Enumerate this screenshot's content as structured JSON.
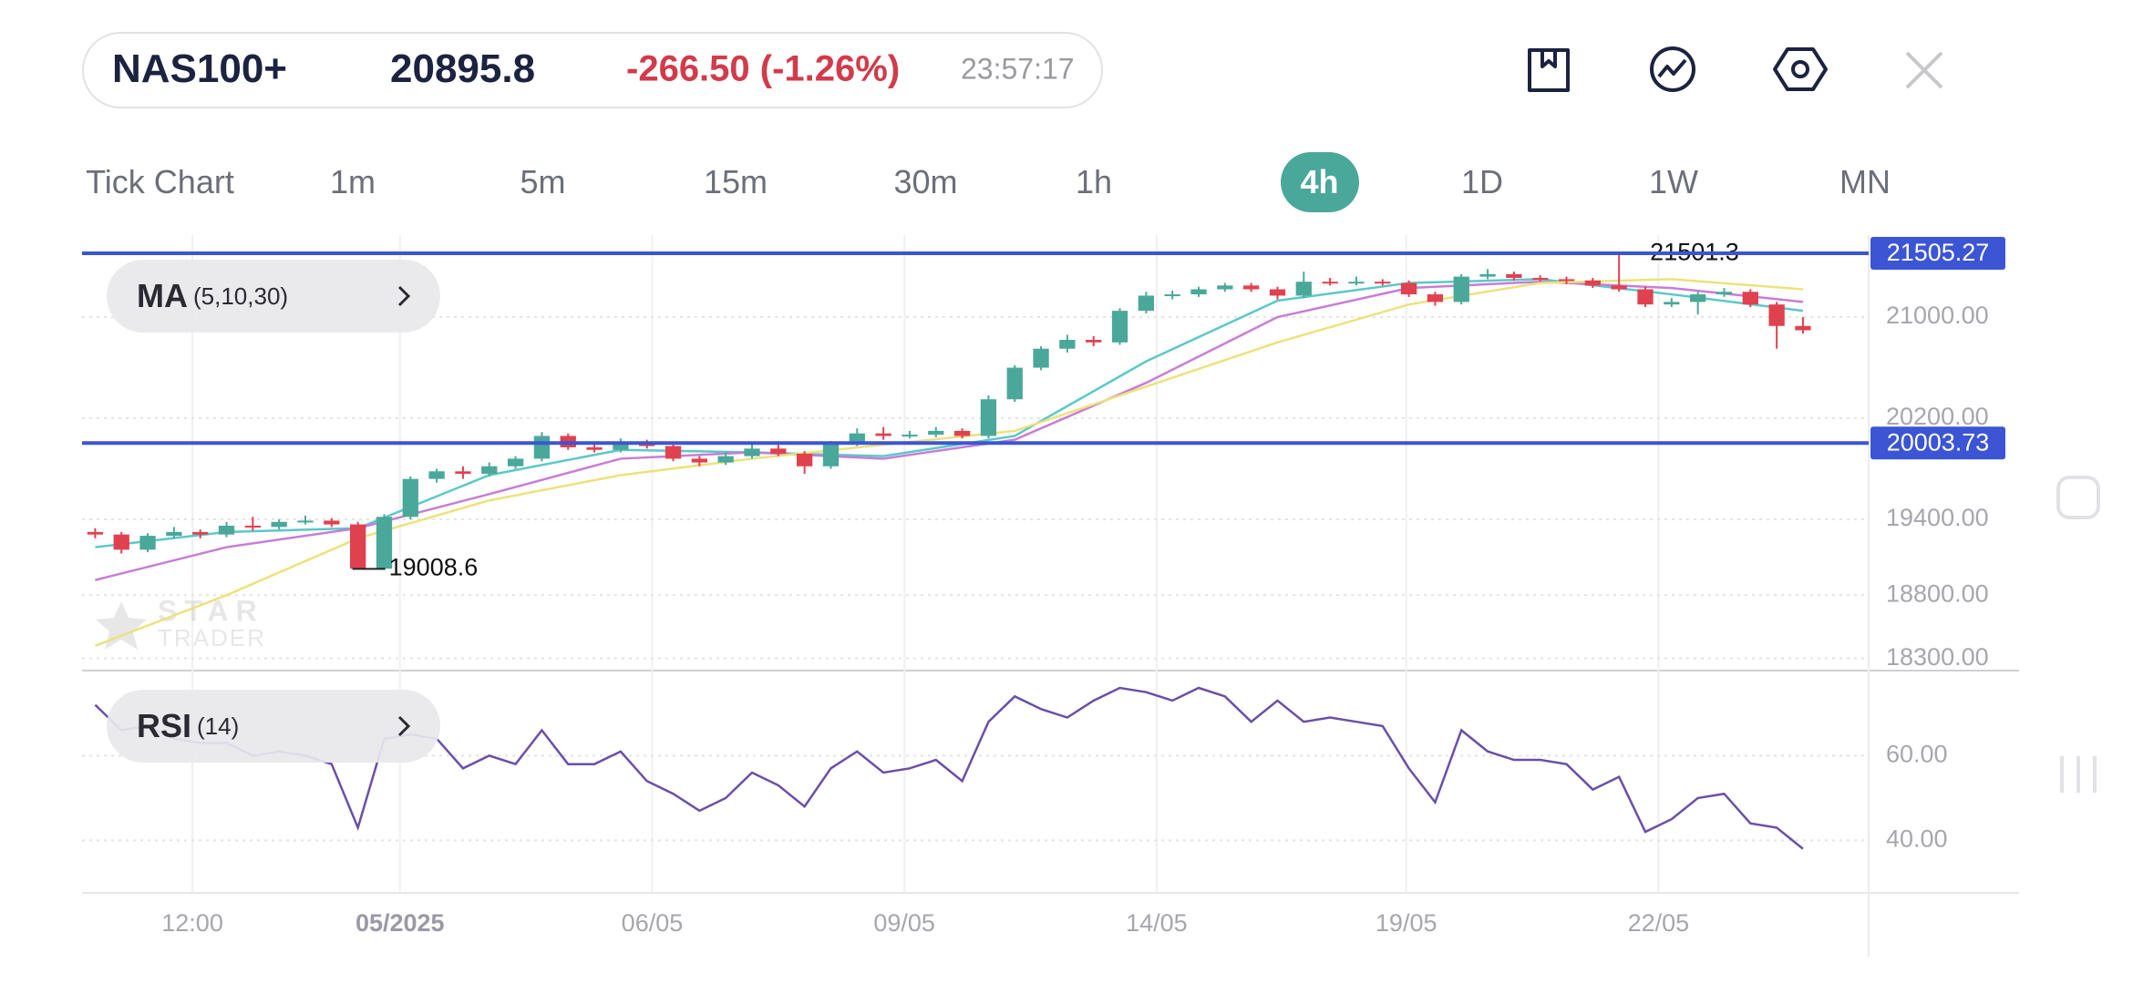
{
  "header": {
    "symbol": "NAS100+",
    "price": "20895.8",
    "change": "-266.50 (-1.26%)",
    "time": "23:57:17"
  },
  "timeframes": [
    "Tick Chart",
    "1m",
    "5m",
    "15m",
    "30m",
    "1h",
    "4h",
    "1D",
    "1W",
    "MN"
  ],
  "active_timeframe": 6,
  "chart_data": [
    {
      "type": "candlestick",
      "indicator": "MA",
      "indicator_params": "(5,10,30)",
      "watermark": {
        "line1": "STAR",
        "line2": "TRADER"
      },
      "up_color": "#4aa89a",
      "down_color": "#e0414f",
      "candles": [
        [
          19300,
          19330,
          19250,
          19280
        ],
        [
          19280,
          19300,
          19130,
          19160
        ],
        [
          19160,
          19290,
          19140,
          19270
        ],
        [
          19270,
          19340,
          19250,
          19300
        ],
        [
          19300,
          19320,
          19250,
          19280
        ],
        [
          19280,
          19380,
          19260,
          19350
        ],
        [
          19350,
          19420,
          19310,
          19340
        ],
        [
          19340,
          19400,
          19320,
          19380
        ],
        [
          19380,
          19430,
          19360,
          19390
        ],
        [
          19390,
          19410,
          19340,
          19360
        ],
        [
          19360,
          19380,
          19008.6,
          19010
        ],
        [
          19010,
          19440,
          19000,
          19420
        ],
        [
          19420,
          19740,
          19400,
          19720
        ],
        [
          19720,
          19800,
          19690,
          19780
        ],
        [
          19780,
          19820,
          19720,
          19760
        ],
        [
          19760,
          19850,
          19740,
          19820
        ],
        [
          19820,
          19900,
          19800,
          19880
        ],
        [
          19880,
          20090,
          19860,
          20060
        ],
        [
          20060,
          20080,
          19950,
          19970
        ],
        [
          19970,
          20010,
          19930,
          19950
        ],
        [
          19950,
          20040,
          19930,
          20000
        ],
        [
          20000,
          20030,
          19960,
          19980
        ],
        [
          19980,
          20000,
          19860,
          19880
        ],
        [
          19880,
          19900,
          19820,
          19850
        ],
        [
          19850,
          19930,
          19830,
          19900
        ],
        [
          19900,
          20000,
          19880,
          19960
        ],
        [
          19960,
          19990,
          19900,
          19920
        ],
        [
          19920,
          19940,
          19760,
          19820
        ],
        [
          19820,
          20020,
          19800,
          20000
        ],
        [
          20000,
          20120,
          19980,
          20080
        ],
        [
          20080,
          20130,
          20030,
          20060
        ],
        [
          20060,
          20100,
          20040,
          20070
        ],
        [
          20070,
          20130,
          20050,
          20100
        ],
        [
          20100,
          20120,
          20040,
          20060
        ],
        [
          20060,
          20380,
          20040,
          20350
        ],
        [
          20350,
          20620,
          20330,
          20600
        ],
        [
          20600,
          20770,
          20580,
          20750
        ],
        [
          20750,
          20860,
          20720,
          20820
        ],
        [
          20820,
          20850,
          20770,
          20800
        ],
        [
          20800,
          21070,
          20780,
          21050
        ],
        [
          21050,
          21200,
          21030,
          21170
        ],
        [
          21170,
          21210,
          21140,
          21180
        ],
        [
          21180,
          21240,
          21160,
          21220
        ],
        [
          21220,
          21270,
          21200,
          21250
        ],
        [
          21250,
          21270,
          21200,
          21220
        ],
        [
          21220,
          21240,
          21140,
          21170
        ],
        [
          21170,
          21360,
          21150,
          21280
        ],
        [
          21280,
          21310,
          21250,
          21270
        ],
        [
          21270,
          21320,
          21250,
          21280
        ],
        [
          21280,
          21300,
          21250,
          21270
        ],
        [
          21270,
          21290,
          21160,
          21180
        ],
        [
          21180,
          21200,
          21090,
          21120
        ],
        [
          21120,
          21340,
          21100,
          21320
        ],
        [
          21320,
          21380,
          21300,
          21340
        ],
        [
          21340,
          21360,
          21290,
          21310
        ],
        [
          21310,
          21330,
          21280,
          21300
        ],
        [
          21300,
          21320,
          21260,
          21290
        ],
        [
          21290,
          21310,
          21230,
          21250
        ],
        [
          21250,
          21501.3,
          21200,
          21220
        ],
        [
          21220,
          21240,
          21080,
          21100
        ],
        [
          21100,
          21150,
          21080,
          21120
        ],
        [
          21120,
          21200,
          21020,
          21180
        ],
        [
          21180,
          21230,
          21160,
          21200
        ],
        [
          21200,
          21220,
          21080,
          21100
        ],
        [
          21100,
          21120,
          20750,
          20930
        ],
        [
          20930,
          21000,
          20870,
          20895.8
        ]
      ],
      "ma_x": [
        0.5,
        5.5,
        10.5,
        15.5,
        20.5,
        25.5,
        30.5,
        35.5,
        40.5,
        45.5,
        50.5,
        55.5,
        60.5,
        65.5
      ],
      "series": [
        {
          "color": "#5bc8c8",
          "values": [
            19180,
            19300,
            19330,
            19750,
            19950,
            19930,
            19900,
            20060,
            20650,
            21130,
            21270,
            21300,
            21180,
            21050
          ]
        },
        {
          "color": "#c77dd6",
          "values": [
            18920,
            19180,
            19330,
            19600,
            19880,
            19930,
            19880,
            20030,
            20480,
            21000,
            21230,
            21280,
            21230,
            21120
          ]
        },
        {
          "color": "#ece27a",
          "values": [
            18400,
            18800,
            19250,
            19550,
            19750,
            19880,
            19990,
            20100,
            20450,
            20800,
            21100,
            21270,
            21300,
            21220
          ]
        }
      ],
      "annotations": [
        {
          "candle": 58,
          "part": 1
        },
        {
          "candle": 10,
          "part": 2
        }
      ],
      "price_lines": [
        21505.27,
        20003.73
      ],
      "price_line_color": "#3b55d4",
      "xlim": [
        0,
        68
      ],
      "xticks": [
        {
          "value": 4.2,
          "label": "12:00"
        },
        {
          "value": 12.1,
          "label": "05/2025",
          "bold": true
        },
        {
          "value": 21.7,
          "label": "06/05"
        },
        {
          "value": 31.3,
          "label": "09/05"
        },
        {
          "value": 40.9,
          "label": "14/05"
        },
        {
          "value": 50.4,
          "label": "19/05"
        },
        {
          "value": 60.0,
          "label": "22/05"
        }
      ],
      "ylim": [
        18211,
        21649
      ],
      "yticks": [
        {
          "value": 21000,
          "label": "21000.00"
        },
        {
          "value": 20200,
          "label": "20200.00"
        },
        {
          "value": 19400,
          "label": "19400.00"
        },
        {
          "value": 18800,
          "label": "18800.00"
        },
        {
          "value": 18300,
          "label": "18300.00"
        }
      ],
      "grid": true
    },
    {
      "type": "line",
      "indicator": "RSI",
      "indicator_params": "(14)",
      "color": "#6a4fa8",
      "values": [
        72,
        66,
        67,
        64,
        63,
        63,
        60,
        61,
        60,
        58,
        43,
        64,
        65,
        64,
        57,
        60,
        58,
        66,
        58,
        58,
        61,
        54,
        51,
        47,
        50,
        56,
        53,
        48,
        57,
        61,
        56,
        57,
        59,
        54,
        68,
        74,
        71,
        69,
        73,
        76,
        75,
        73,
        76,
        74,
        68,
        73,
        68,
        69,
        68,
        67,
        57,
        49,
        66,
        61,
        59,
        59,
        58,
        52,
        55,
        42,
        45,
        50,
        51,
        44,
        43,
        38
      ],
      "ylim": [
        27.6,
        78.8
      ],
      "yticks": [
        {
          "value": 60,
          "label": "60.00"
        },
        {
          "value": 40,
          "label": "40.00"
        }
      ],
      "grid": true
    }
  ]
}
